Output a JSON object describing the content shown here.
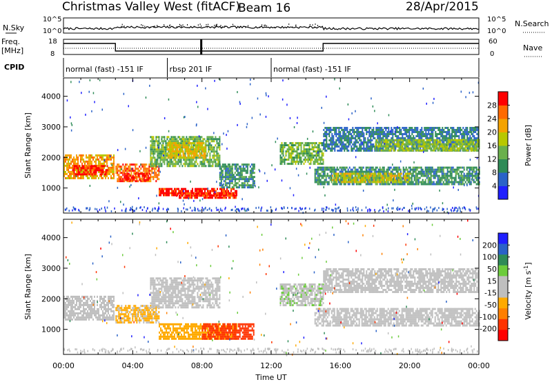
{
  "header": {
    "station": "Christmas Valley West (fitACF)",
    "beam": "Beam 16",
    "date": "28/Apr/2015"
  },
  "side_labels": {
    "nsky": "N.Sky",
    "nsearch": "N.Search",
    "freq": "Freq.",
    "freq_unit": "[MHz]",
    "nave": "Nave",
    "cpid": "CPID"
  },
  "strip_ticks": {
    "noise_left": [
      "10^5",
      "10^0"
    ],
    "noise_right": [
      "10^5",
      "10^0"
    ],
    "freq_left": [
      "18",
      "8"
    ],
    "nave_right": [
      "60",
      "0"
    ]
  },
  "cpid_segments": [
    {
      "label": "normal (fast) -151 IF",
      "start": 0,
      "end": 6
    },
    {
      "label": "rbsp 201 IF",
      "start": 6,
      "end": 12
    },
    {
      "label": "normal (fast) -151 IF",
      "start": 12,
      "end": 24
    }
  ],
  "colors": {
    "power_scale": [
      "#1f1fff",
      "#2a62c8",
      "#2e8b57",
      "#6ab04c",
      "#b8c800",
      "#f5a300",
      "#ff6a00",
      "#ff0000"
    ],
    "velocity_scale": [
      "#1f1fff",
      "#2a62c8",
      "#2e8b57",
      "#6ccc3c",
      "#bfbfbf",
      "#bfbfbf",
      "#ffaa00",
      "#ff7f00",
      "#ff3300",
      "#ff0000"
    ]
  },
  "chart_data": [
    {
      "type": "heatmap",
      "title": "",
      "xlabel": "",
      "ylabel": "Slant Range [km]",
      "xlim": [
        0,
        24
      ],
      "ylim": [
        180,
        4600
      ],
      "y_ticks": [
        "1000",
        "2000",
        "3000",
        "4000"
      ],
      "colorbar_label": "Power [dB]",
      "colorbar_ticks": [
        "4",
        "8",
        "12",
        "16",
        "20",
        "24",
        "28"
      ],
      "colorbar_range": [
        0,
        32
      ],
      "regions": [
        {
          "x": [
            0.0,
            2.9
          ],
          "y": [
            1300,
            2100
          ],
          "value": 22
        },
        {
          "x": [
            0.5,
            2.6
          ],
          "y": [
            1450,
            1750
          ],
          "value": 30
        },
        {
          "x": [
            3.0,
            5.5
          ],
          "y": [
            1200,
            1800
          ],
          "value": 26
        },
        {
          "x": [
            3.5,
            5.0
          ],
          "y": [
            1250,
            1500
          ],
          "value": 30
        },
        {
          "x": [
            5.0,
            9.0
          ],
          "y": [
            1700,
            2700
          ],
          "value": 14
        },
        {
          "x": [
            6.0,
            8.2
          ],
          "y": [
            2000,
            2500
          ],
          "value": 20
        },
        {
          "x": [
            5.5,
            10.0
          ],
          "y": [
            750,
            1000
          ],
          "value": 30
        },
        {
          "x": [
            6.5,
            10.0
          ],
          "y": [
            650,
            850
          ],
          "value": 28
        },
        {
          "x": [
            9.0,
            11.0
          ],
          "y": [
            1000,
            1800
          ],
          "value": 10
        },
        {
          "x": [
            12.5,
            15.0
          ],
          "y": [
            1800,
            2500
          ],
          "value": 14
        },
        {
          "x": [
            15.0,
            24.0
          ],
          "y": [
            2200,
            3000
          ],
          "value": 8
        },
        {
          "x": [
            18.0,
            24.0
          ],
          "y": [
            2200,
            2600
          ],
          "value": 16
        },
        {
          "x": [
            14.5,
            24.0
          ],
          "y": [
            1100,
            1700
          ],
          "value": 10
        },
        {
          "x": [
            15.5,
            20.0
          ],
          "y": [
            1200,
            1500
          ],
          "value": 18
        }
      ]
    },
    {
      "type": "heatmap",
      "title": "",
      "xlabel": "Time UT",
      "ylabel": "Slant Range [km]",
      "xlim": [
        0,
        24
      ],
      "ylim": [
        180,
        4600
      ],
      "x_ticks": [
        "00:00",
        "04:00",
        "08:00",
        "12:00",
        "16:00",
        "20:00",
        "00:00"
      ],
      "y_ticks": [
        "1000",
        "2000",
        "3000",
        "4000"
      ],
      "colorbar_label": "Velocity [m s-1]",
      "colorbar_ticks": [
        "200",
        "100",
        "50",
        "15",
        "-15",
        "-50",
        "-100",
        "-200"
      ],
      "colorbar_range": [
        -250,
        250
      ],
      "regions": [
        {
          "x": [
            0.0,
            2.9
          ],
          "y": [
            1300,
            2100
          ],
          "value": 0
        },
        {
          "x": [
            3.0,
            5.5
          ],
          "y": [
            1200,
            1800
          ],
          "value": -60
        },
        {
          "x": [
            5.0,
            9.0
          ],
          "y": [
            1700,
            2700
          ],
          "value": 0
        },
        {
          "x": [
            5.5,
            10.0
          ],
          "y": [
            700,
            1200
          ],
          "value": -70
        },
        {
          "x": [
            8.0,
            11.0
          ],
          "y": [
            700,
            1200
          ],
          "value": -180
        },
        {
          "x": [
            12.5,
            15.0
          ],
          "y": [
            1800,
            2500
          ],
          "value": 40
        },
        {
          "x": [
            15.0,
            24.0
          ],
          "y": [
            2200,
            3000
          ],
          "value": 0
        },
        {
          "x": [
            14.5,
            24.0
          ],
          "y": [
            1100,
            1700
          ],
          "value": 0
        }
      ]
    }
  ]
}
